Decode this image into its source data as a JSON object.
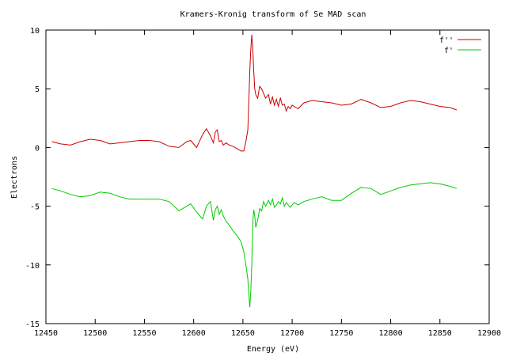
{
  "chart_data": {
    "type": "line",
    "title": "Kramers-Kronig transform of Se MAD scan",
    "xlabel": "Energy (eV)",
    "ylabel": "Electrons",
    "xlim": [
      12450,
      12900
    ],
    "ylim": [
      -15,
      10
    ],
    "xticks": [
      12450,
      12500,
      12550,
      12600,
      12650,
      12700,
      12750,
      12800,
      12850,
      12900
    ],
    "yticks": [
      -15,
      -10,
      -5,
      0,
      5,
      10
    ],
    "grid": false,
    "legend_position": "top-right",
    "series": [
      {
        "name": "f''",
        "color": "#cc0000",
        "x": [
          12456,
          12465,
          12475,
          12485,
          12495,
          12505,
          12515,
          12525,
          12535,
          12545,
          12555,
          12565,
          12575,
          12585,
          12593,
          12597,
          12603,
          12609,
          12613,
          12617,
          12620,
          12622,
          12624,
          12626,
          12628,
          12630,
          12633,
          12636,
          12640,
          12644,
          12648,
          12651,
          12653,
          12655,
          12656,
          12657,
          12658,
          12659,
          12660,
          12661,
          12662,
          12663,
          12665,
          12667,
          12669,
          12671,
          12673,
          12676,
          12678,
          12680,
          12682,
          12684,
          12686,
          12688,
          12690,
          12692,
          12694,
          12696,
          12698,
          12700,
          12702,
          12706,
          12712,
          12720,
          12730,
          12740,
          12750,
          12760,
          12770,
          12780,
          12790,
          12800,
          12810,
          12820,
          12830,
          12840,
          12850,
          12860,
          12867
        ],
        "y": [
          0.5,
          0.3,
          0.2,
          0.5,
          0.7,
          0.6,
          0.3,
          0.4,
          0.5,
          0.6,
          0.6,
          0.5,
          0.1,
          0.0,
          0.5,
          0.6,
          0.0,
          1.1,
          1.6,
          1.0,
          0.4,
          1.3,
          1.5,
          0.5,
          0.6,
          0.2,
          0.4,
          0.2,
          0.1,
          -0.1,
          -0.3,
          -0.3,
          0.5,
          1.5,
          4.0,
          6.5,
          8.3,
          9.6,
          8.5,
          6.5,
          5.0,
          4.5,
          4.2,
          5.2,
          5.0,
          4.6,
          4.2,
          4.5,
          3.7,
          4.3,
          3.6,
          4.1,
          3.5,
          4.2,
          3.6,
          3.7,
          3.1,
          3.5,
          3.3,
          3.6,
          3.5,
          3.3,
          3.8,
          4.0,
          3.9,
          3.8,
          3.6,
          3.7,
          4.1,
          3.8,
          3.4,
          3.5,
          3.8,
          4.0,
          3.9,
          3.7,
          3.5,
          3.4,
          3.2
        ]
      },
      {
        "name": "f'",
        "color": "#00cc00",
        "x": [
          12456,
          12465,
          12475,
          12485,
          12495,
          12505,
          12515,
          12525,
          12535,
          12545,
          12555,
          12565,
          12575,
          12585,
          12593,
          12597,
          12603,
          12609,
          12613,
          12617,
          12620,
          12622,
          12624,
          12626,
          12628,
          12630,
          12633,
          12636,
          12640,
          12644,
          12648,
          12651,
          12653,
          12655,
          12656,
          12657,
          12658,
          12659,
          12660,
          12661,
          12662,
          12663,
          12665,
          12667,
          12669,
          12671,
          12673,
          12676,
          12678,
          12680,
          12682,
          12684,
          12686,
          12688,
          12690,
          12692,
          12694,
          12696,
          12698,
          12700,
          12702,
          12706,
          12712,
          12720,
          12730,
          12740,
          12750,
          12760,
          12770,
          12780,
          12790,
          12800,
          12810,
          12820,
          12830,
          12840,
          12850,
          12860,
          12867
        ],
        "y": [
          -3.5,
          -3.7,
          -4.0,
          -4.2,
          -4.1,
          -3.8,
          -3.9,
          -4.2,
          -4.4,
          -4.4,
          -4.4,
          -4.4,
          -4.6,
          -5.4,
          -5.0,
          -4.8,
          -5.5,
          -6.1,
          -5.0,
          -4.6,
          -6.2,
          -5.3,
          -5.0,
          -5.7,
          -5.3,
          -5.8,
          -6.3,
          -6.6,
          -7.1,
          -7.5,
          -8.0,
          -8.9,
          -10.0,
          -11.2,
          -12.5,
          -13.6,
          -12.3,
          -10.0,
          -6.5,
          -5.3,
          -5.8,
          -6.8,
          -6.2,
          -5.2,
          -5.4,
          -4.6,
          -5.0,
          -4.5,
          -4.9,
          -4.4,
          -5.1,
          -4.9,
          -4.6,
          -4.8,
          -4.3,
          -5.0,
          -4.7,
          -4.9,
          -5.1,
          -4.9,
          -4.7,
          -4.9,
          -4.6,
          -4.4,
          -4.2,
          -4.5,
          -4.5,
          -3.9,
          -3.4,
          -3.5,
          -4.0,
          -3.7,
          -3.4,
          -3.2,
          -3.1,
          -3.0,
          -3.1,
          -3.3,
          -3.5
        ]
      }
    ]
  }
}
